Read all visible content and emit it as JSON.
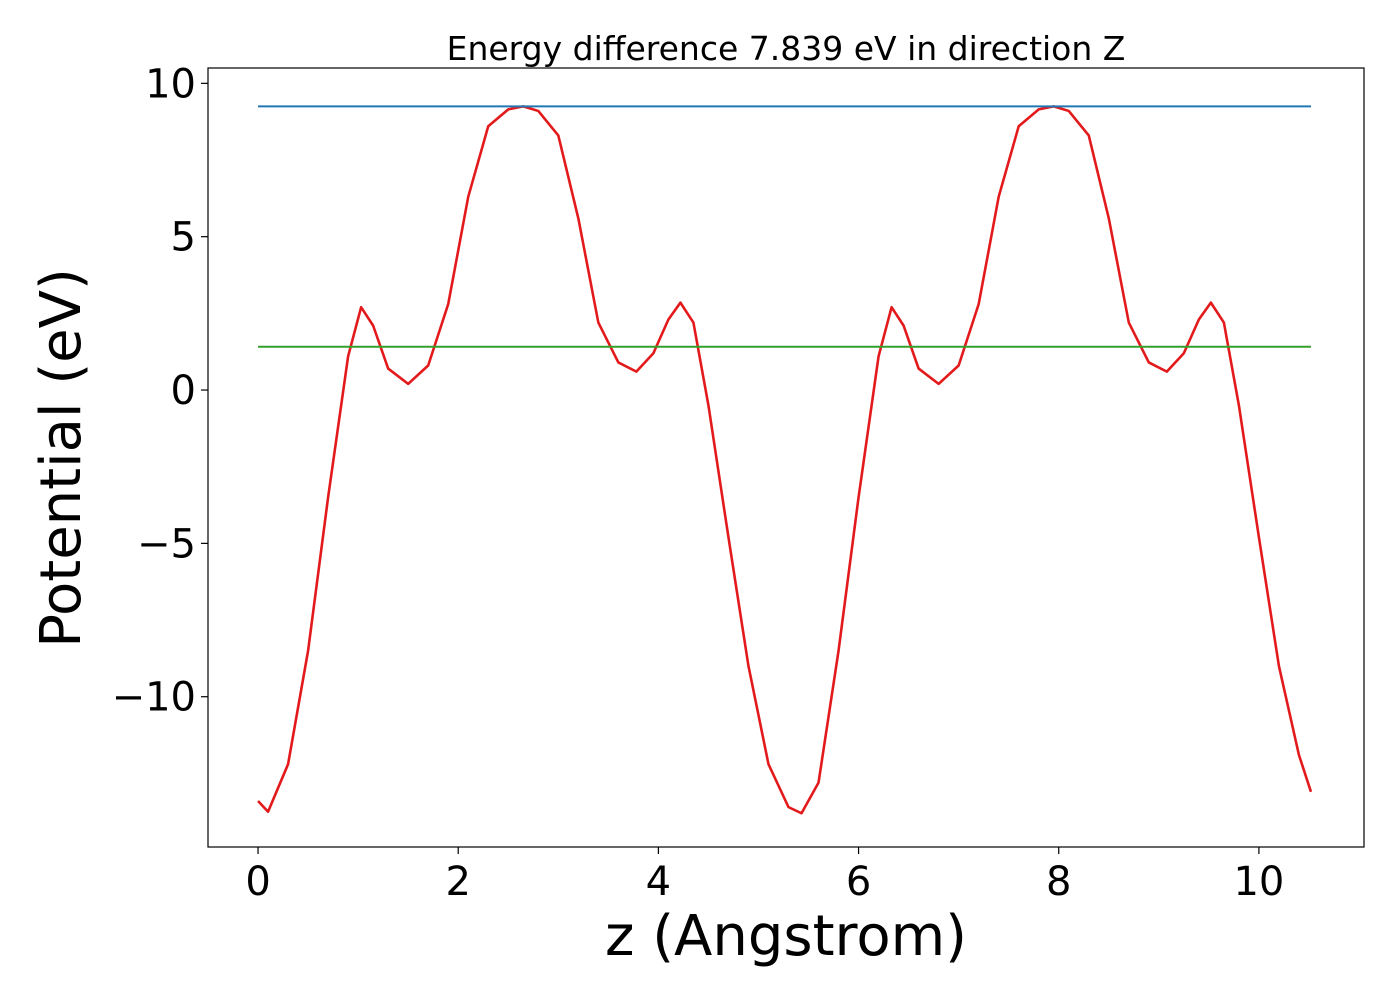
{
  "chart_data": {
    "type": "line",
    "title": "Energy difference 7.839 eV in direction Z",
    "xlabel": "z (Angstrom)",
    "ylabel": "Potential (eV)",
    "xlim": [
      -0.5,
      11.05
    ],
    "ylim": [
      -14.9,
      10.5
    ],
    "x_ticks": [
      0,
      2,
      4,
      6,
      8,
      10
    ],
    "x_tick_labels": [
      "0",
      "2",
      "4",
      "6",
      "8",
      "10"
    ],
    "y_ticks": [
      10,
      5,
      0,
      -5,
      -10
    ],
    "y_tick_labels": [
      "10",
      "5",
      "0",
      "−5",
      "−10"
    ],
    "grid": false,
    "legend": "none",
    "series": [
      {
        "color": "#e31a1c",
        "x": [
          0.0,
          0.1,
          0.3,
          0.5,
          0.7,
          0.9,
          1.03,
          1.15,
          1.3,
          1.5,
          1.7,
          1.9,
          2.1,
          2.3,
          2.5,
          2.65,
          2.8,
          3.0,
          3.2,
          3.4,
          3.6,
          3.78,
          3.95,
          4.1,
          4.22,
          4.35,
          4.5,
          4.7,
          4.9,
          5.1,
          5.3,
          5.43,
          5.6,
          5.8,
          6.0,
          6.2,
          6.33,
          6.45,
          6.6,
          6.8,
          7.0,
          7.2,
          7.4,
          7.6,
          7.8,
          7.95,
          8.1,
          8.3,
          8.5,
          8.7,
          8.9,
          9.08,
          9.25,
          9.4,
          9.52,
          9.65,
          9.8,
          10.0,
          10.2,
          10.4,
          10.52
        ],
        "y": [
          -13.4,
          -13.75,
          -12.2,
          -8.5,
          -3.5,
          1.1,
          2.7,
          2.1,
          0.7,
          0.2,
          0.8,
          2.8,
          6.3,
          8.6,
          9.15,
          9.25,
          9.1,
          8.3,
          5.6,
          2.2,
          0.9,
          0.6,
          1.2,
          2.3,
          2.85,
          2.2,
          -0.5,
          -4.8,
          -9.0,
          -12.2,
          -13.6,
          -13.8,
          -12.8,
          -8.5,
          -3.5,
          1.1,
          2.7,
          2.1,
          0.7,
          0.2,
          0.8,
          2.8,
          6.3,
          8.6,
          9.15,
          9.25,
          9.1,
          8.3,
          5.6,
          2.2,
          0.9,
          0.6,
          1.2,
          2.3,
          2.85,
          2.2,
          -0.5,
          -4.8,
          -9.0,
          -11.9,
          -13.1
        ]
      },
      {
        "color": "#1f77b4",
        "x": [
          0,
          10.52
        ],
        "y": [
          9.25,
          9.25
        ]
      },
      {
        "color": "#33a02c",
        "x": [
          0,
          10.52
        ],
        "y": [
          1.41,
          1.41
        ]
      }
    ]
  }
}
